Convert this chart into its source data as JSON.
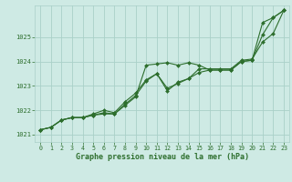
{
  "title": "Graphe pression niveau de la mer (hPa)",
  "background_color": "#ceeae4",
  "grid_color": "#aad0c8",
  "line_color": "#2d6e2d",
  "marker_color": "#2d6e2d",
  "xlim": [
    -0.5,
    23.5
  ],
  "ylim": [
    1020.7,
    1026.3
  ],
  "xticks": [
    0,
    1,
    2,
    3,
    4,
    5,
    6,
    7,
    8,
    9,
    10,
    11,
    12,
    13,
    14,
    15,
    16,
    17,
    18,
    19,
    20,
    21,
    22,
    23
  ],
  "yticks": [
    1021,
    1022,
    1023,
    1024,
    1025
  ],
  "series1_x": [
    0,
    1,
    2,
    3,
    4,
    5,
    6,
    7,
    8,
    9,
    10,
    11,
    12,
    13,
    14,
    15,
    16,
    17,
    18,
    19,
    20,
    21,
    22,
    23
  ],
  "series1_y": [
    1021.2,
    1021.3,
    1021.6,
    1021.7,
    1021.7,
    1021.8,
    1021.9,
    1021.85,
    1022.2,
    1022.55,
    1023.85,
    1023.9,
    1023.95,
    1023.85,
    1023.95,
    1023.85,
    1023.65,
    1023.65,
    1023.65,
    1024.0,
    1024.05,
    1025.6,
    1025.8,
    1026.1
  ],
  "series2_x": [
    0,
    1,
    2,
    3,
    4,
    5,
    6,
    7,
    8,
    9,
    10,
    11,
    12,
    13,
    14,
    15,
    16,
    17,
    18,
    19,
    20,
    21,
    22,
    23
  ],
  "series2_y": [
    1021.2,
    1021.3,
    1021.6,
    1021.7,
    1021.7,
    1021.8,
    1021.85,
    1021.85,
    1022.25,
    1022.6,
    1023.2,
    1023.5,
    1022.8,
    1023.15,
    1023.3,
    1023.55,
    1023.65,
    1023.65,
    1023.65,
    1024.0,
    1024.05,
    1025.1,
    1025.8,
    1026.1
  ],
  "series3_x": [
    0,
    1,
    2,
    3,
    4,
    5,
    6,
    7,
    8,
    9,
    10,
    11,
    12,
    13,
    14,
    15,
    16,
    17,
    18,
    19,
    20,
    21,
    22,
    23
  ],
  "series3_y": [
    1021.2,
    1021.3,
    1021.6,
    1021.7,
    1021.7,
    1021.85,
    1022.0,
    1021.9,
    1022.35,
    1022.7,
    1023.25,
    1023.5,
    1022.9,
    1023.1,
    1023.3,
    1023.7,
    1023.7,
    1023.7,
    1023.7,
    1024.05,
    1024.1,
    1024.8,
    1025.15,
    1026.1
  ]
}
